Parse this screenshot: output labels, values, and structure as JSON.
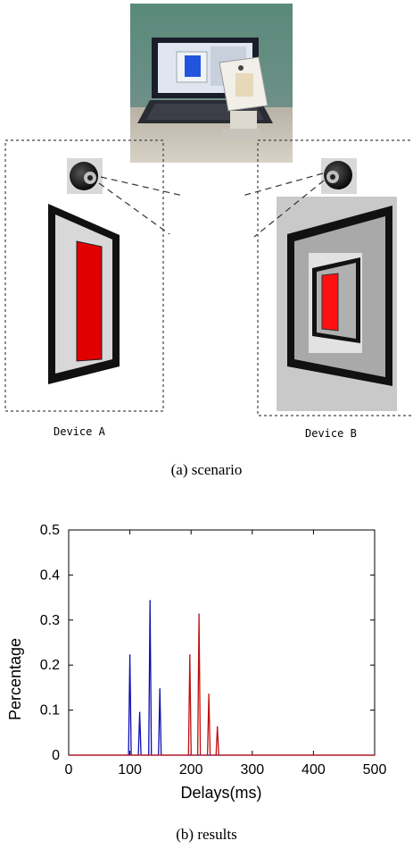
{
  "figure": {
    "device_a_label": "Device A",
    "device_b_label": "Device B",
    "caption_a": "(a) scenario",
    "caption_b": "(b) results"
  },
  "colors": {
    "series_blue": "#1010b0",
    "series_red": "#c01010",
    "screen_red": "#e00000"
  },
  "chart_data": {
    "type": "line",
    "xlabel": "Delays(ms)",
    "ylabel": "Percentage",
    "xlim": [
      0,
      500
    ],
    "ylim": [
      0,
      0.5
    ],
    "xticks": [
      0,
      100,
      200,
      300,
      400,
      500
    ],
    "yticks": [
      0,
      0.1,
      0.2,
      0.3,
      0.4,
      0.5
    ],
    "grid": false,
    "series": [
      {
        "color": "#1010b0",
        "peaks": [
          {
            "x": 100,
            "y": 0.222
          },
          {
            "x": 116,
            "y": 0.095
          },
          {
            "x": 133,
            "y": 0.343
          },
          {
            "x": 149,
            "y": 0.147
          }
        ]
      },
      {
        "color": "#c01010",
        "peaks": [
          {
            "x": 198,
            "y": 0.222
          },
          {
            "x": 213,
            "y": 0.313
          },
          {
            "x": 229,
            "y": 0.135
          },
          {
            "x": 243,
            "y": 0.063
          }
        ]
      }
    ]
  }
}
